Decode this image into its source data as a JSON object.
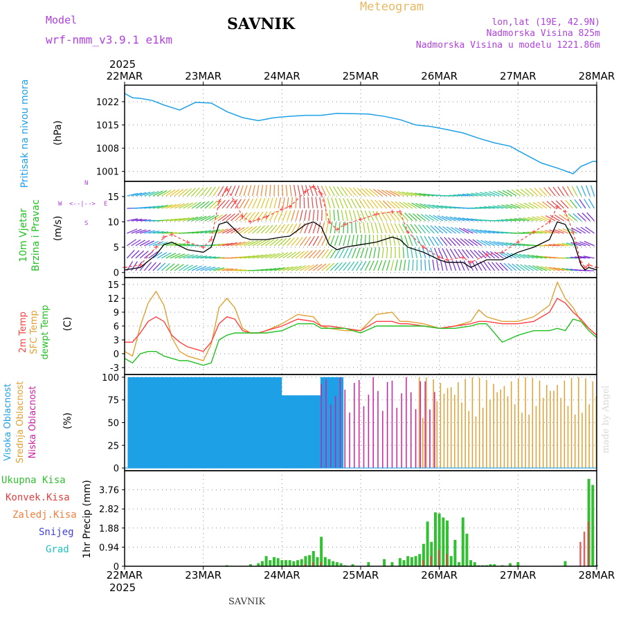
{
  "header": {
    "model_label": "Model",
    "model_name": "wrf-nmm_v3.9.1 e1km",
    "station": "SAVNIK",
    "product": "Meteogram",
    "lonlat": "lon,lat (19E, 42.9N)",
    "elevation": "Nadmorska Visina 825m",
    "model_elevation": "Nadmorska Visina u modelu 1221.86m",
    "footer_station": "SAVNIK",
    "watermark": "made by Angel"
  },
  "colors": {
    "pressure": "#1ea0e6",
    "wind_mean": "#000000",
    "gust": "#ff4040",
    "t2m": "#ff4040",
    "sfc_temp": "#e0a030",
    "dewpoint": "#20c020",
    "cloud_high": "#1ea0e6",
    "cloud_mid": "#e0a030",
    "cloud_low": "#d020a0",
    "precip_total": "#30c030",
    "precip_conv": "#e04040",
    "snow": "#4040e0",
    "graupel": "#20c0c0",
    "axis_label_purple": "#b040e0"
  },
  "chart_data": [
    {
      "type": "line",
      "id": "pressure",
      "ylabel_name": "Pritisak na nivou mora",
      "ylabel_unit": "(hPa)",
      "year": "2025",
      "x_ticks": [
        "22MAR",
        "23MAR",
        "24MAR",
        "25MAR",
        "26MAR",
        "27MAR",
        "28MAR"
      ],
      "ylim": [
        998,
        1027
      ],
      "y_ticks": [
        1001,
        1008,
        1015,
        1022
      ],
      "grid": true,
      "x_days": [
        0,
        0.1,
        0.2,
        0.35,
        0.5,
        0.7,
        0.9,
        1.1,
        1.3,
        1.5,
        1.7,
        1.9,
        2.1,
        2.3,
        2.5,
        2.7,
        2.9,
        3.1,
        3.3,
        3.5,
        3.7,
        3.9,
        4.1,
        4.3,
        4.5,
        4.7,
        4.9,
        5.1,
        5.3,
        5.5,
        5.7,
        5.8,
        5.95,
        6.0
      ],
      "series": [
        {
          "values": [
            1024.5,
            1023.2,
            1023.0,
            1022.4,
            1021.0,
            1019.5,
            1021.8,
            1021.6,
            1019.0,
            1017.2,
            1016.3,
            1017.2,
            1017.6,
            1017.9,
            1017.9,
            1018.5,
            1018.4,
            1018.3,
            1017.6,
            1016.6,
            1015.0,
            1014.5,
            1013.6,
            1012.6,
            1011.0,
            1009.6,
            1008.6,
            1006.0,
            1003.5,
            1002.0,
            1000.3,
            1002.5,
            1004.0,
            1004.0
          ]
        }
      ]
    },
    {
      "type": "line",
      "id": "wind",
      "ylabel_name": "10m Vjetar",
      "ylabel_name2": "Brzina i Pravac",
      "ylabel_unit": "(m/s)",
      "compass": {
        "north": "N",
        "west": "W",
        "east": "E",
        "south": "S"
      },
      "ylim": [
        -1,
        18
      ],
      "y_ticks": [
        0,
        5,
        10,
        15
      ],
      "grid": true,
      "x_days": [
        0,
        0.2,
        0.4,
        0.5,
        0.6,
        0.8,
        1.0,
        1.1,
        1.2,
        1.3,
        1.4,
        1.5,
        1.6,
        1.7,
        1.8,
        2.0,
        2.1,
        2.3,
        2.4,
        2.5,
        2.6,
        2.7,
        2.8,
        3.0,
        3.2,
        3.4,
        3.5,
        3.6,
        3.8,
        4.0,
        4.1,
        4.3,
        4.4,
        4.6,
        4.8,
        5.0,
        5.2,
        5.4,
        5.5,
        5.6,
        5.7,
        5.8,
        5.85,
        5.9,
        6.0
      ],
      "series": [
        {
          "name": "mean",
          "values": [
            0.5,
            1.0,
            3.5,
            5.5,
            6.0,
            4.5,
            4.0,
            5.0,
            9.5,
            10.0,
            8.5,
            7.0,
            6.5,
            6.5,
            6.5,
            7.0,
            7.2,
            9.5,
            10.0,
            9.0,
            5.5,
            4.5,
            5.0,
            5.5,
            6.0,
            7.0,
            6.5,
            5.0,
            4.0,
            2.5,
            2.0,
            2.0,
            1.0,
            2.5,
            2.5,
            4.0,
            5.0,
            6.5,
            10.0,
            9.5,
            6.5,
            1.5,
            0.5,
            1.0,
            0.5
          ]
        },
        {
          "name": "gust",
          "values": [
            1.0,
            1.5,
            5.0,
            7.0,
            7.5,
            6.0,
            5.0,
            6.5,
            14.0,
            16.5,
            14.0,
            11.0,
            10.0,
            10.5,
            11.0,
            12.5,
            13.0,
            16.0,
            17.0,
            15.5,
            10.0,
            8.5,
            9.5,
            10.5,
            11.5,
            12.0,
            12.0,
            8.0,
            5.0,
            3.0,
            2.5,
            3.0,
            2.0,
            3.5,
            4.0,
            6.0,
            8.0,
            10.0,
            13.0,
            12.0,
            8.0,
            2.0,
            1.0,
            1.5,
            1.0
          ]
        }
      ]
    },
    {
      "type": "line",
      "id": "temperature",
      "ylabel_names": [
        "2m Temp",
        "SFC Temp",
        "dewpt Temp"
      ],
      "ylabel_unit": "(C)",
      "ylim": [
        -4.5,
        16.5
      ],
      "y_ticks": [
        -3,
        0,
        3,
        6,
        9,
        12,
        15
      ],
      "grid": true,
      "x_days": [
        0,
        0.1,
        0.2,
        0.3,
        0.4,
        0.5,
        0.6,
        0.7,
        0.8,
        0.9,
        1.0,
        1.1,
        1.2,
        1.3,
        1.4,
        1.5,
        1.6,
        1.7,
        1.8,
        2.0,
        2.2,
        2.4,
        2.5,
        2.6,
        2.8,
        3.0,
        3.2,
        3.4,
        3.5,
        3.6,
        3.8,
        4.0,
        4.2,
        4.4,
        4.5,
        4.6,
        4.8,
        5.0,
        5.2,
        5.4,
        5.5,
        5.6,
        5.7,
        5.8,
        5.9,
        6.0
      ],
      "series": [
        {
          "name": "2m Temp",
          "values": [
            2.5,
            2.5,
            4.5,
            7.0,
            8.0,
            7.0,
            4.0,
            2.5,
            1.5,
            1.0,
            0.5,
            2.5,
            6.5,
            8.0,
            7.5,
            5.0,
            4.5,
            4.5,
            5.0,
            6.0,
            7.5,
            7.0,
            6.0,
            6.0,
            5.5,
            5.0,
            7.0,
            7.0,
            6.5,
            6.5,
            6.0,
            5.5,
            6.0,
            6.5,
            7.0,
            7.0,
            6.5,
            6.5,
            7.0,
            9.0,
            12.0,
            11.0,
            9.0,
            7.5,
            5.5,
            4.0
          ]
        },
        {
          "name": "SFC Temp",
          "values": [
            0.5,
            -0.5,
            6.0,
            11.0,
            13.5,
            10.5,
            3.5,
            0.5,
            -0.5,
            -1.0,
            -1.5,
            2.0,
            10.0,
            12.0,
            10.0,
            5.5,
            4.5,
            4.5,
            5.0,
            6.5,
            8.5,
            8.0,
            6.0,
            5.5,
            5.0,
            5.0,
            8.5,
            9.0,
            7.0,
            7.0,
            6.5,
            5.5,
            6.0,
            7.0,
            9.5,
            8.0,
            7.0,
            7.0,
            8.0,
            10.5,
            15.5,
            12.0,
            10.0,
            7.0,
            5.5,
            4.0
          ]
        },
        {
          "name": "dewpt Temp",
          "values": [
            -1.0,
            -2.0,
            0.0,
            0.5,
            0.5,
            -0.5,
            -1.0,
            -1.5,
            -1.5,
            -2.0,
            -2.5,
            -2.0,
            3.0,
            4.0,
            4.5,
            4.5,
            4.5,
            4.5,
            4.5,
            5.0,
            6.5,
            6.5,
            5.5,
            5.5,
            5.5,
            4.5,
            6.0,
            6.0,
            6.0,
            6.0,
            6.0,
            5.5,
            5.5,
            6.0,
            6.5,
            6.5,
            2.5,
            4.0,
            5.0,
            5.0,
            5.5,
            5.0,
            7.5,
            7.0,
            5.0,
            3.5
          ]
        }
      ]
    },
    {
      "type": "bar",
      "id": "cloud",
      "ylabel_names": [
        "Visoka Oblacnost",
        "Srednja Oblacnost",
        "Niska Oblacnost"
      ],
      "ylabel_unit": "(%)",
      "ylim": [
        -3,
        103
      ],
      "y_ticks": [
        0,
        25,
        50,
        75,
        100
      ],
      "grid": true,
      "segments": [
        {
          "name": "high",
          "x0": 0.05,
          "x1": 1.88,
          "value": 100
        },
        {
          "name": "high",
          "x0": 1.88,
          "x1": 2.0,
          "value": 100
        },
        {
          "name": "high",
          "x0": 2.0,
          "x1": 2.5,
          "value": 80
        },
        {
          "name": "high",
          "x0": 2.5,
          "x1": 2.78,
          "value": 100
        },
        {
          "name": "mid",
          "x0": 3.7,
          "x1": 6.0,
          "value": 100
        },
        {
          "name": "low",
          "x0": 2.5,
          "x1": 4.0,
          "value": 100
        }
      ]
    },
    {
      "type": "bar",
      "id": "precip",
      "legend": [
        "Ukupna Kisa",
        "Konvek.Kisa",
        "Zaledj.Kisa",
        "Snijeg",
        "Grad"
      ],
      "ylabel_unit": "1hr Precip (mm)",
      "ylim": [
        0,
        4.7
      ],
      "y_ticks": [
        0,
        0.94,
        1.88,
        2.82,
        3.76
      ],
      "y_tick_labels": [
        "0",
        "0.94",
        "1.88",
        "2.82",
        "3.76"
      ],
      "grid": true,
      "bar_width_days": 0.035,
      "total_x": [
        1.3,
        1.6,
        1.7,
        1.75,
        1.8,
        1.85,
        1.9,
        1.95,
        2.0,
        2.05,
        2.1,
        2.15,
        2.2,
        2.25,
        2.3,
        2.35,
        2.4,
        2.45,
        2.5,
        2.55,
        2.6,
        2.65,
        2.7,
        2.75,
        2.8,
        2.9,
        3.1,
        3.3,
        3.4,
        3.5,
        3.55,
        3.6,
        3.65,
        3.7,
        3.75,
        3.8,
        3.85,
        3.9,
        3.95,
        4.0,
        4.05,
        4.1,
        4.15,
        4.2,
        4.25,
        4.3,
        4.35,
        4.4,
        4.45,
        4.5,
        4.55,
        4.6,
        4.65,
        4.7,
        4.8,
        4.9,
        5.0,
        5.6,
        5.9,
        5.95,
        6.0
      ],
      "total": [
        0.05,
        0.1,
        0.15,
        0.25,
        0.5,
        0.3,
        0.45,
        0.4,
        0.3,
        0.3,
        0.3,
        0.25,
        0.3,
        0.35,
        0.5,
        0.55,
        0.75,
        0.45,
        1.45,
        0.45,
        0.35,
        0.25,
        0.2,
        0.15,
        0.05,
        0.1,
        0.2,
        0.35,
        0.2,
        0.4,
        0.3,
        0.5,
        0.45,
        0.5,
        0.6,
        1.1,
        2.2,
        1.2,
        2.65,
        2.6,
        2.4,
        2.25,
        0.5,
        1.3,
        0.2,
        2.4,
        1.6,
        0.3,
        0.2,
        0.05,
        0.05,
        0.05,
        0.1,
        0.1,
        0.05,
        0.15,
        0.2,
        0.25,
        4.3,
        4.0,
        0.05
      ],
      "conv_x": [
        2.3,
        2.4,
        2.5,
        3.8,
        3.9,
        4.0,
        4.1,
        5.8,
        5.85,
        5.9
      ],
      "conv": [
        0.1,
        0.2,
        0.2,
        0.3,
        0.5,
        0.8,
        0.6,
        1.2,
        1.7,
        2.2
      ]
    }
  ]
}
